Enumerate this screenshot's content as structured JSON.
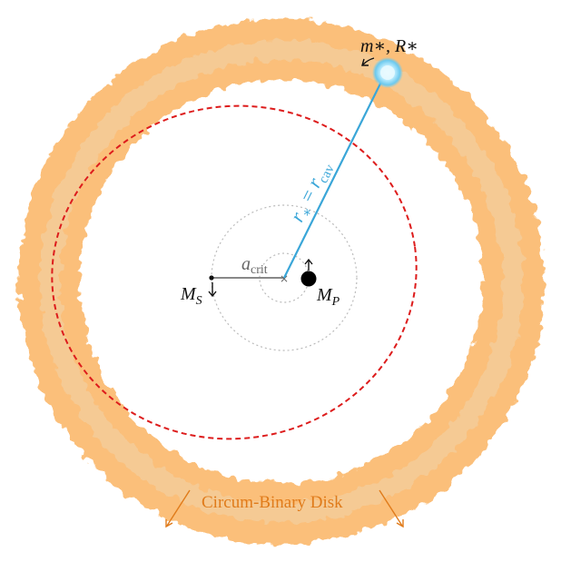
{
  "labels": {
    "star": "m∗, R∗",
    "secondary": "M",
    "secondary_sub": "S",
    "primary": "M",
    "primary_sub": "P",
    "a_crit": "a",
    "a_crit_sub": "crit",
    "r_star": "r",
    "r_star_sub": "∗",
    "r_eq": " = ",
    "r_cav": "r",
    "r_cav_sub": "cav",
    "disk": "Circum-Binary Disk"
  },
  "colors": {
    "disk": "#fbbf7a",
    "disk_inner_band": "#f3c995",
    "ellipse": "#dd1c1c",
    "radius_line": "#3aa6d8",
    "star_glow": "#8fd8f5",
    "baseline": "#888888",
    "dotted_circles": "#bbbbbb",
    "disk_label": "#e07b1a"
  }
}
